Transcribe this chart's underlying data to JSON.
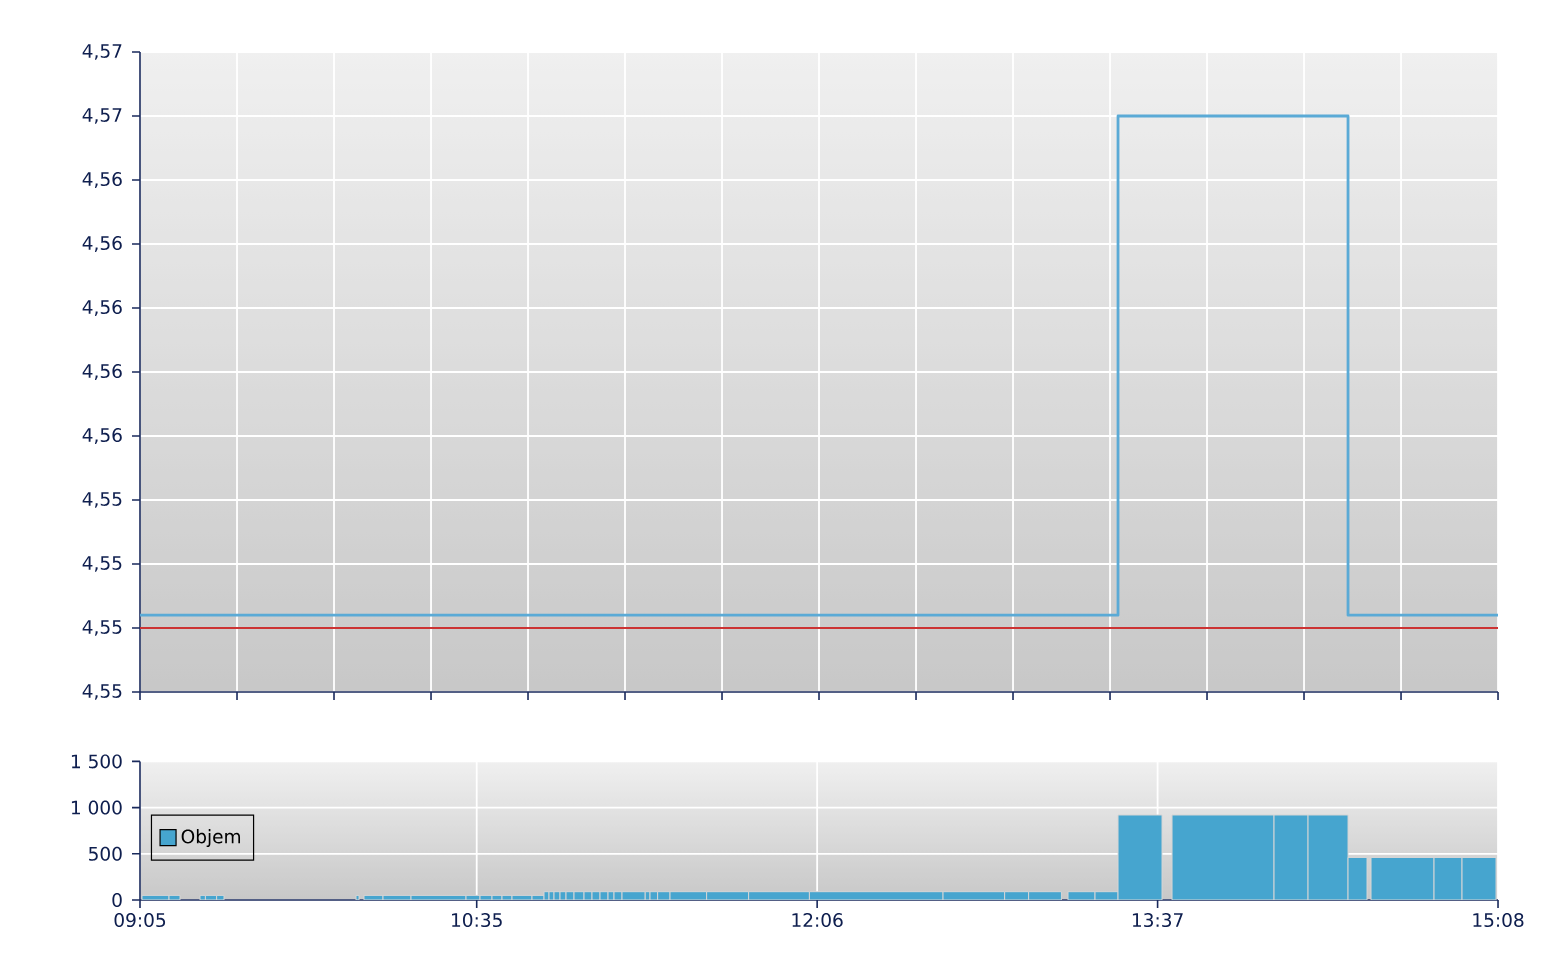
{
  "chart_data": [
    {
      "type": "step",
      "xlim": [
        9.0833,
        15.1333
      ],
      "xticks": [
        {
          "value": 9.0833,
          "label": null
        },
        {
          "value": 9.5155,
          "label": null
        },
        {
          "value": 9.9476,
          "label": null
        },
        {
          "value": 10.3798,
          "label": null
        },
        {
          "value": 10.8119,
          "label": null
        },
        {
          "value": 11.244,
          "label": null
        },
        {
          "value": 11.6762,
          "label": null
        },
        {
          "value": 12.1083,
          "label": null
        },
        {
          "value": 12.5405,
          "label": null
        },
        {
          "value": 12.9726,
          "label": null
        },
        {
          "value": 13.4048,
          "label": null
        },
        {
          "value": 13.8369,
          "label": null
        },
        {
          "value": 14.269,
          "label": null
        },
        {
          "value": 14.7012,
          "label": null
        },
        {
          "value": 15.1333,
          "label": null
        }
      ],
      "ylim": [
        4.548,
        4.568
      ],
      "yticks": [
        {
          "value": 4.548,
          "label": "4,55"
        },
        {
          "value": 4.55,
          "label": "4,55"
        },
        {
          "value": 4.552,
          "label": "4,55"
        },
        {
          "value": 4.554,
          "label": "4,55"
        },
        {
          "value": 4.556,
          "label": "4,56"
        },
        {
          "value": 4.558,
          "label": "4,56"
        },
        {
          "value": 4.56,
          "label": "4,56"
        },
        {
          "value": 4.562,
          "label": "4,56"
        },
        {
          "value": 4.564,
          "label": "4,56"
        },
        {
          "value": 4.566,
          "label": "4,57"
        },
        {
          "value": 4.568,
          "label": "4,57"
        }
      ],
      "grid": true,
      "tick_labels": "y",
      "ref_lines": [
        {
          "axis": "y",
          "value": 4.55,
          "color": "#cc3333"
        }
      ],
      "series": [
        {
          "color": "#5aaad6",
          "x": [
            9.0833,
            13.4404,
            14.4651,
            15.1333
          ],
          "values": [
            4.5504,
            4.566,
            4.5504,
            4.5504
          ]
        }
      ]
    },
    {
      "type": "histogram",
      "bins": [
        9.0922,
        9.2125,
        9.2615,
        9.3506,
        9.3747,
        9.4246,
        9.4575,
        10.0456,
        10.059,
        10.0812,
        10.1659,
        10.2906,
        10.5357,
        10.598,
        10.6515,
        10.696,
        10.7406,
        10.8297,
        10.8832,
        10.9054,
        10.9277,
        10.9544,
        10.9812,
        11.0168,
        11.0614,
        11.097,
        11.1326,
        11.1683,
        11.195,
        11.2307,
        11.334,
        11.3554,
        11.3893,
        11.4445,
        11.6076,
        11.7947,
        12.0655,
        12.6608,
        12.9352,
        13.0421,
        13.1882,
        13.2176,
        13.3379,
        13.4404,
        13.6364,
        13.681,
        14.1354,
        14.2869,
        14.4651,
        14.5497,
        14.5675,
        14.8482,
        14.9729,
        15.1244
      ],
      "series": [
        {
          "name": "Objem",
          "color": "#46a5cf",
          "values": [
            50,
            50,
            null,
            50,
            50,
            50,
            null,
            50,
            null,
            50,
            50,
            50,
            50,
            50,
            50,
            50,
            50,
            50,
            90,
            90,
            90,
            90,
            90,
            90,
            90,
            90,
            90,
            90,
            90,
            90,
            90,
            90,
            90,
            90,
            90,
            90,
            90,
            90,
            90,
            90,
            null,
            90,
            90,
            920,
            null,
            920,
            920,
            920,
            460,
            null,
            460,
            460,
            460
          ]
        }
      ],
      "xlim": [
        9.0833,
        15.1333
      ],
      "xticks": [
        {
          "value": 9.0833,
          "label": "09:05"
        },
        {
          "value": 10.5833,
          "label": "10:35"
        },
        {
          "value": 12.1,
          "label": "12:06"
        },
        {
          "value": 13.6167,
          "label": "13:37"
        },
        {
          "value": 15.1333,
          "label": "15:08"
        }
      ],
      "ylim": [
        0,
        1500
      ],
      "yticks": [
        0,
        500,
        {
          "value": 1000,
          "label": "1 000"
        },
        {
          "value": 1500,
          "label": "1 500"
        }
      ],
      "grid": true,
      "legend": "left"
    }
  ]
}
